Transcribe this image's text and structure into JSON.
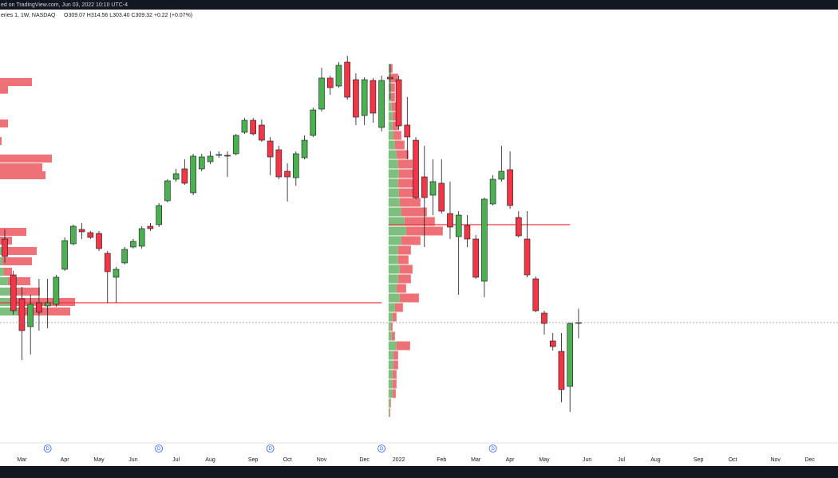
{
  "topbar": "ed on TradingView.com, Jun 03, 2022 10:10 UTC-4",
  "chart_data": {
    "type": "candlestick",
    "title": "eries 1, 1W, NASDAQ",
    "ohlc_label": "O309.07 H314.56 L303.40 C309.32 +0.22 (+0.07%)",
    "up_color": "#4caf50",
    "down_color": "#f23645",
    "profile_up_color": "#7cbf7f",
    "profile_down_color": "#ee7178",
    "poc_color": "#f23645",
    "ylim": [
      264.3,
      424.8
    ],
    "categories": [
      null,
      null,
      "Mar",
      null,
      null,
      null,
      null,
      "Apr",
      null,
      null,
      null,
      "May",
      null,
      null,
      null,
      "Jun",
      null,
      null,
      null,
      null,
      "Jul",
      null,
      null,
      null,
      "Aug",
      null,
      null,
      null,
      null,
      "Sep",
      null,
      null,
      null,
      "Oct",
      null,
      null,
      null,
      "Nov",
      null,
      null,
      null,
      null,
      "Dec",
      null,
      null,
      null,
      "2022",
      null,
      null,
      null,
      null,
      "Feb",
      null,
      null,
      null,
      "Mar",
      null,
      null,
      null,
      "Apr",
      null,
      null,
      null,
      "May",
      null,
      null,
      null,
      null,
      "Jun",
      null,
      null,
      null,
      "Jul",
      null,
      null,
      null,
      "Aug",
      null,
      null,
      null,
      null,
      "Sep",
      null,
      null,
      null,
      "Oct",
      null,
      null,
      null,
      null,
      "Nov",
      null,
      null,
      null,
      "Dec"
    ],
    "flags": [
      null,
      null,
      null,
      null,
      null,
      "D",
      null,
      null,
      null,
      null,
      null,
      null,
      null,
      null,
      null,
      null,
      null,
      null,
      "D",
      null,
      null,
      null,
      null,
      null,
      null,
      null,
      null,
      null,
      null,
      null,
      null,
      "D",
      null,
      null,
      null,
      null,
      null,
      null,
      null,
      null,
      null,
      null,
      null,
      null,
      "D",
      null,
      null,
      null,
      null,
      null,
      null,
      null,
      null,
      null,
      null,
      null,
      null,
      "D",
      null,
      null,
      null,
      null,
      null,
      null,
      null,
      null,
      null,
      null,
      null,
      null,
      null,
      null,
      null,
      null,
      null,
      null,
      null,
      null,
      null,
      null,
      null,
      null,
      null,
      null,
      null,
      null,
      null,
      null,
      null,
      null,
      null,
      null,
      null,
      null,
      null
    ],
    "open": [
      340.8,
      327.3,
      318.3,
      307.8,
      316.8,
      315.6,
      316.2,
      329.4,
      339,
      344.4,
      343.2,
      342.9,
      335.4,
      326.4,
      331.8,
      337.8,
      338.1,
      345.6,
      346.2,
      355.2,
      363.3,
      367.2,
      358.2,
      367.2,
      369.9,
      372.3,
      372.3,
      372.9,
      381,
      385.5,
      383.7,
      377.7,
      374.4,
      366.3,
      363.9,
      371.4,
      379.8,
      389.7,
      401.4,
      398.4,
      407.4,
      400.8,
      387.3,
      400.5,
      382.8,
      401.7,
      400.8,
      383.7,
      378,
      364.2,
      357.3,
      361.8,
      350.4,
      341.7,
      345.9,
      340.8,
      324.9,
      354,
      363.3,
      366.9,
      348.9,
      340.8,
      325.8,
      312.9,
      302.4,
      298.5,
      285.3,
      309.07,
      null,
      null,
      null,
      null,
      null,
      null,
      null,
      null,
      null,
      null,
      null,
      null,
      null,
      null,
      null,
      null,
      null,
      null,
      null,
      null,
      null,
      null,
      null,
      null,
      null,
      null,
      null
    ],
    "high": [
      344.4,
      328.8,
      322.8,
      319.8,
      325.8,
      325.8,
      327.3,
      341.4,
      346.2,
      346.8,
      343.8,
      343.8,
      336.3,
      330.3,
      337.8,
      340.8,
      345.6,
      346.8,
      354.3,
      363.3,
      367.2,
      370.8,
      372.9,
      372.9,
      373.8,
      373.8,
      373.8,
      380.4,
      386.4,
      386.4,
      385.8,
      379.2,
      375.9,
      369.3,
      373.8,
      379.8,
      390.3,
      405.3,
      402.3,
      407.4,
      409.8,
      403.2,
      401.7,
      401.4,
      402.3,
      406.8,
      402.3,
      394.2,
      379.2,
      375.9,
      370.8,
      370.8,
      362.4,
      351.3,
      349.8,
      342.3,
      356.4,
      364.8,
      375.9,
      373.8,
      351.3,
      351.3,
      326.7,
      313.8,
      305.4,
      305.4,
      309.3,
      314.56,
      null,
      null,
      null,
      null,
      null,
      null,
      null,
      null,
      null,
      null,
      null,
      null,
      null,
      null,
      null,
      null,
      null,
      null,
      null,
      null,
      null,
      null,
      null,
      null,
      null,
      null,
      null
    ],
    "low": [
      331.8,
      312.3,
      295.2,
      297.3,
      306.3,
      307.2,
      315.3,
      328.8,
      338.4,
      340.8,
      340.8,
      336.3,
      316.8,
      316.8,
      331.2,
      337.2,
      337.2,
      343.8,
      345.3,
      354.6,
      362.4,
      361.2,
      357.3,
      366.3,
      369,
      371.4,
      364.2,
      372.3,
      380.4,
      379.8,
      377.4,
      364.8,
      363.3,
      354.9,
      360.9,
      370.8,
      379.2,
      388.8,
      395.1,
      397.8,
      393.3,
      383.7,
      383.7,
      384.6,
      381.3,
      393.3,
      381.9,
      370.8,
      355.8,
      337.8,
      349.8,
      350.4,
      340.8,
      319.8,
      337.8,
      325.8,
      318.9,
      353.4,
      362.4,
      352.2,
      341.4,
      326.4,
      313.2,
      304.8,
      298.8,
      279.3,
      275.7,
      303.4,
      null,
      null,
      null,
      null,
      null,
      null,
      null,
      null,
      null,
      null,
      null,
      null,
      null,
      null,
      null,
      null,
      null,
      null,
      null,
      null,
      null,
      null,
      null,
      null,
      null,
      null,
      null
    ],
    "close": [
      334.2,
      313.8,
      306.3,
      316.2,
      313.2,
      316.8,
      326.4,
      340.2,
      345.6,
      343.5,
      341.4,
      337.2,
      328.5,
      329.4,
      336.9,
      339.9,
      344.7,
      344.7,
      353.4,
      362.7,
      365.4,
      361.8,
      372,
      371.7,
      372,
      372.6,
      372,
      379.8,
      385.5,
      380.4,
      378,
      371.7,
      364.2,
      364.2,
      372.9,
      378,
      389.4,
      401.4,
      397.8,
      406.2,
      394.2,
      386.7,
      400.8,
      388.2,
      400.5,
      401.1,
      383.4,
      379.2,
      356.4,
      356.4,
      362.4,
      351.3,
      345.3,
      349.8,
      340.8,
      326.4,
      355.8,
      363.3,
      366.3,
      353.4,
      342,
      327.3,
      313.8,
      309,
      300.3,
      284.1,
      309,
      309.32,
      null,
      null,
      null,
      null,
      null,
      null,
      null,
      null,
      null,
      null,
      null,
      null,
      null,
      null,
      null,
      null,
      null,
      null,
      null,
      null,
      null,
      null,
      null,
      null,
      null,
      null,
      null
    ],
    "volume_profiles": [
      {
        "prices": [
          399.9,
          397,
          384.3,
          377.7,
          371.1,
          367.8,
          364.8,
          343.5,
          340.2,
          336.3,
          332.4,
          328.5,
          324.9,
          321,
          317.1,
          313.5
        ],
        "up": [
          0,
          0,
          0,
          0,
          0,
          0,
          0,
          0,
          0,
          3,
          3,
          5,
          10,
          15,
          20,
          22
        ],
        "down": [
          40,
          10,
          10,
          2,
          65,
          53,
          57,
          33,
          15,
          43,
          37,
          10,
          28,
          35,
          74,
          66
        ],
        "poc": 316.8
      },
      {
        "prices": [
          405,
          401.4,
          397.8,
          394.2,
          390.6,
          387,
          383.4,
          379.8,
          376.2,
          372.6,
          369,
          365.4,
          361.8,
          358.2,
          354.6,
          351,
          347.4,
          343.8,
          340.2,
          336.6,
          333,
          329.4,
          325.8,
          322.2,
          318.6,
          315,
          311.4,
          307.8,
          304.2,
          300.6,
          297,
          293.4,
          289.8,
          286.2,
          282.6,
          279,
          275.4
        ],
        "up": [
          2,
          3,
          3,
          3,
          4,
          5,
          5,
          6,
          8,
          10,
          12,
          13,
          12,
          13,
          14,
          16,
          20,
          22,
          16,
          12,
          12,
          14,
          12,
          10,
          14,
          8,
          5,
          3,
          4,
          10,
          6,
          6,
          5,
          5,
          5,
          2,
          1
        ],
        "down": [
          3,
          9,
          5,
          5,
          6,
          7,
          7,
          10,
          12,
          15,
          18,
          20,
          22,
          23,
          26,
          32,
          38,
          46,
          24,
          16,
          13,
          16,
          16,
          12,
          24,
          10,
          5,
          2,
          4,
          17,
          6,
          6,
          5,
          5,
          4,
          1,
          1
        ],
        "poc": 346.2
      }
    ]
  }
}
